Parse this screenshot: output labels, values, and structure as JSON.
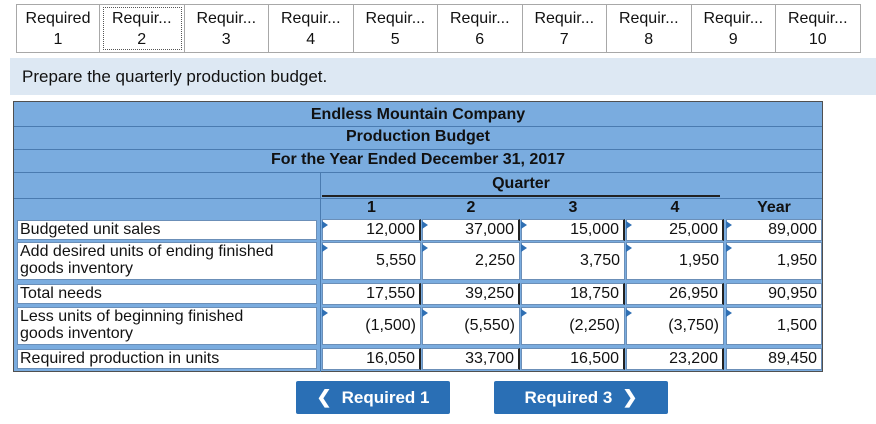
{
  "tabs": [
    {
      "label": "Required",
      "num": "1"
    },
    {
      "label": "Requir...",
      "num": "2"
    },
    {
      "label": "Requir...",
      "num": "3"
    },
    {
      "label": "Requir...",
      "num": "4"
    },
    {
      "label": "Requir...",
      "num": "5"
    },
    {
      "label": "Requir...",
      "num": "6"
    },
    {
      "label": "Requir...",
      "num": "7"
    },
    {
      "label": "Requir...",
      "num": "8"
    },
    {
      "label": "Requir...",
      "num": "9"
    },
    {
      "label": "Requir...",
      "num": "10"
    }
  ],
  "instruction": "Prepare the quarterly production budget.",
  "budget": {
    "company": "Endless Mountain Company",
    "title": "Production Budget",
    "period": "For the Year Ended December 31, 2017",
    "quarter_header": "Quarter",
    "columns": [
      "1",
      "2",
      "3",
      "4",
      "Year"
    ],
    "rows": [
      {
        "label_line1": "Budgeted unit sales",
        "label_line2": "",
        "values": [
          "12,000",
          "37,000",
          "15,000",
          "25,000",
          "89,000"
        ]
      },
      {
        "label_line1": "Add desired units of ending finished",
        "label_line2": "goods inventory",
        "values": [
          "5,550",
          "2,250",
          "3,750",
          "1,950",
          "1,950"
        ]
      },
      {
        "label_line1": "Total needs",
        "label_line2": "",
        "values": [
          "17,550",
          "39,250",
          "18,750",
          "26,950",
          "90,950"
        ]
      },
      {
        "label_line1": "Less units of beginning finished",
        "label_line2": "goods inventory",
        "values": [
          "(1,500)",
          "(5,550)",
          "(2,250)",
          "(3,750)",
          "1,500"
        ]
      },
      {
        "label_line1": "Required production in units",
        "label_line2": "",
        "values": [
          "16,050",
          "33,700",
          "16,500",
          "23,200",
          "89,450"
        ]
      }
    ]
  },
  "nav": {
    "prev_label": "Required 1",
    "next_label": "Required 3",
    "prev_icon": "chevron-left-icon",
    "next_icon": "chevron-right-icon"
  },
  "colors": {
    "table_bg": "#7aacdf",
    "instruction_bg": "#dde8f3",
    "button_bg": "#2a6fb5"
  }
}
